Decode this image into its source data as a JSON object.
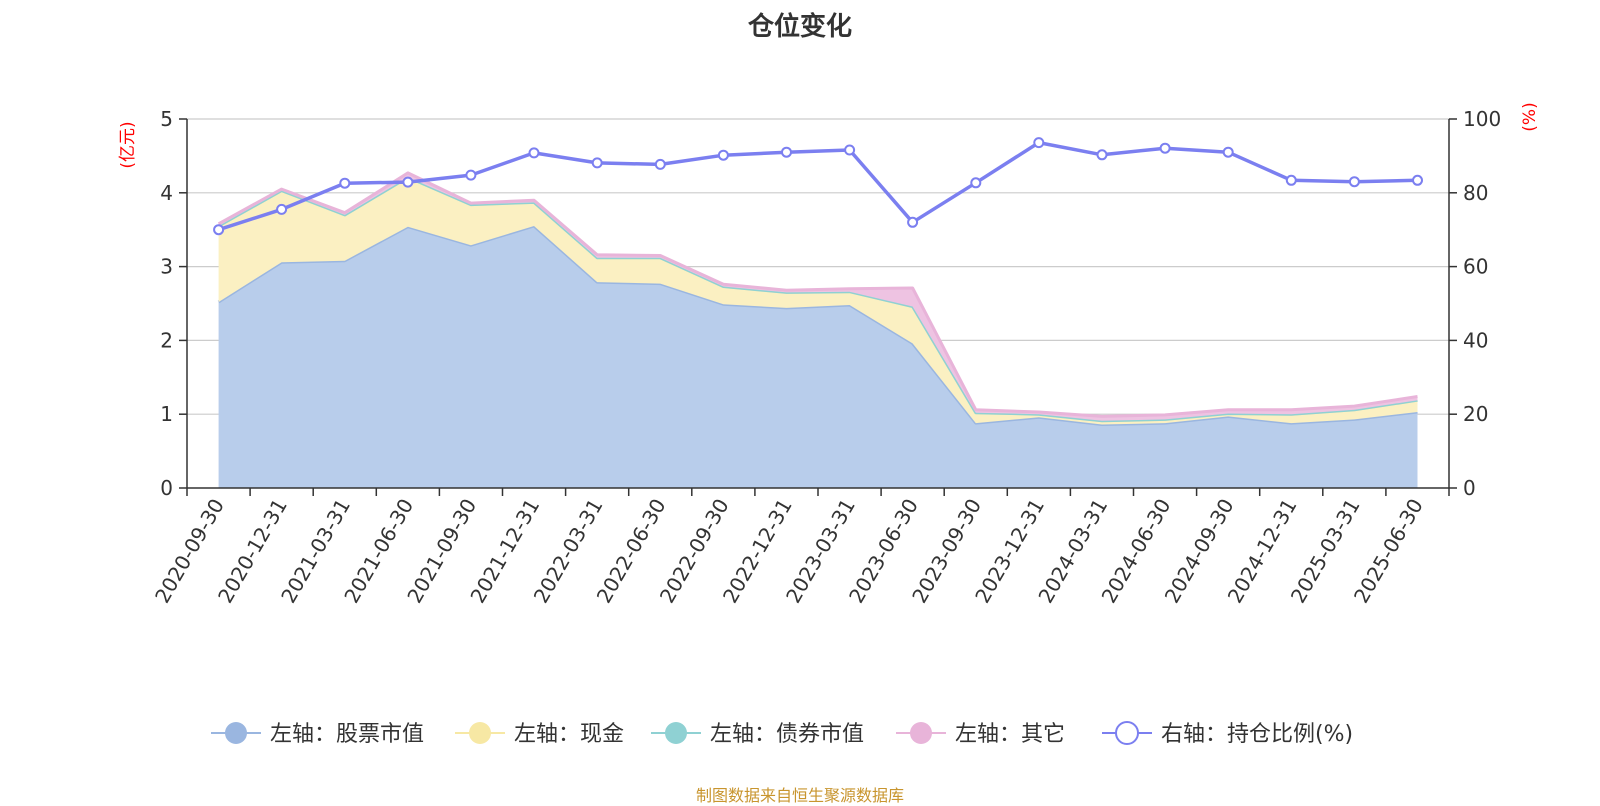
{
  "title": "仓位变化",
  "source": "制图数据来自恒生聚源数据库",
  "chart_data": {
    "type": "area",
    "x": [
      "2020-09-30",
      "2020-12-31",
      "2021-03-31",
      "2021-06-30",
      "2021-09-30",
      "2021-12-31",
      "2022-03-31",
      "2022-06-30",
      "2022-09-30",
      "2022-12-31",
      "2023-03-31",
      "2023-06-30",
      "2023-09-30",
      "2023-12-31",
      "2024-03-31",
      "2024-06-30",
      "2024-09-30",
      "2024-12-31",
      "2025-03-31",
      "2025-06-30"
    ],
    "left_axis": {
      "unit": "(亿元)",
      "ylim": [
        0,
        5
      ],
      "ticks": [
        "0",
        "1",
        "2",
        "3",
        "4",
        "5"
      ]
    },
    "right_axis": {
      "unit": "(%)",
      "ylim": [
        0,
        100
      ],
      "ticks": [
        "0",
        "20",
        "40",
        "60",
        "80",
        "100"
      ]
    },
    "grid": true,
    "legend_position": "bottom",
    "series": [
      {
        "name": "左轴：股票市值",
        "axis": "left",
        "stack": true,
        "color": "#9ab6e0",
        "fill": "#b8cdeb",
        "values": [
          2.52,
          3.06,
          3.08,
          3.54,
          3.29,
          3.55,
          2.79,
          2.77,
          2.49,
          2.44,
          2.48,
          1.96,
          0.88,
          0.96,
          0.86,
          0.88,
          0.97,
          0.88,
          0.93,
          1.03
        ]
      },
      {
        "name": "左轴：现金",
        "axis": "left",
        "stack": true,
        "color": "#f7e8a4",
        "fill": "#fbf0c2",
        "values": [
          1.03,
          0.97,
          0.62,
          0.67,
          0.55,
          0.32,
          0.33,
          0.35,
          0.24,
          0.21,
          0.18,
          0.5,
          0.14,
          0.04,
          0.05,
          0.05,
          0.04,
          0.12,
          0.13,
          0.16
        ]
      },
      {
        "name": "左轴：债券市值",
        "axis": "left",
        "stack": true,
        "color": "#8fd1d3",
        "fill": "#b0e0e1",
        "values": [
          0,
          0,
          0,
          0,
          0,
          0,
          0,
          0,
          0,
          0,
          0,
          0,
          0,
          0,
          0,
          0,
          0,
          0,
          0,
          0
        ]
      },
      {
        "name": "左轴：其它",
        "axis": "left",
        "stack": true,
        "color": "#e8b4d9",
        "fill": "#eec3e2",
        "values": [
          0.03,
          0.02,
          0.03,
          0.06,
          0.02,
          0.03,
          0.04,
          0.03,
          0.03,
          0.03,
          0.04,
          0.25,
          0.04,
          0.03,
          0.06,
          0.06,
          0.05,
          0.06,
          0.05,
          0.05
        ]
      },
      {
        "name": "右轴：持仓比例(%)",
        "axis": "right",
        "type": "line",
        "color": "#7b7ff0",
        "values": [
          70.0,
          75.5,
          82.6,
          82.9,
          84.8,
          90.8,
          88.1,
          87.7,
          90.2,
          91.0,
          91.6,
          72.0,
          82.7,
          93.6,
          90.3,
          92.1,
          91.0,
          83.4,
          83.0,
          83.4
        ]
      }
    ]
  }
}
